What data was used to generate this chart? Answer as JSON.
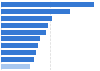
{
  "values": [
    95,
    70,
    52,
    48,
    46,
    40,
    38,
    36,
    34,
    30
  ],
  "bar_color": "#3579d4",
  "bar_color_last": "#a8c8f0",
  "background_color": "#ffffff",
  "grid_color": "#d8d8d8",
  "n_bars": 10
}
